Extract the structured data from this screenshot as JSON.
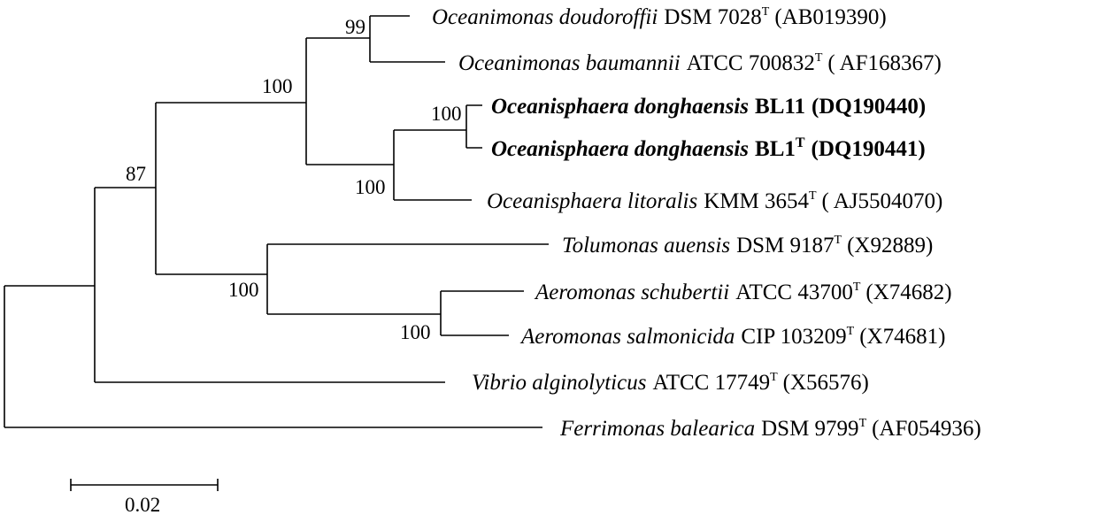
{
  "taxa": [
    {
      "genus": "Oceanimonas doudoroffii",
      "strain": "DSM 7028",
      "type": "T",
      "accession": "(AB019390)",
      "bold": false
    },
    {
      "genus": "Oceanimonas baumannii",
      "strain": "ATCC 700832",
      "type": "T",
      "accession": "( AF168367)",
      "bold": false
    },
    {
      "genus": "Oceanisphaera donghaensis",
      "strain": "BL11",
      "type": "",
      "accession": "(DQ190440)",
      "bold": true
    },
    {
      "genus": "Oceanisphaera donghaensis",
      "strain": "BL1",
      "type": "T",
      "accession": "(DQ190441)",
      "bold": true
    },
    {
      "genus": "Oceanisphaera litoralis",
      "strain": "KMM 3654",
      "type": "T",
      "accession": "( AJ5504070)",
      "bold": false
    },
    {
      "genus": "Tolumonas auensis",
      "strain": "DSM 9187",
      "type": "T",
      "accession": "(X92889)",
      "bold": false
    },
    {
      "genus": "Aeromonas schubertii",
      "strain": "ATCC 43700",
      "type": "T",
      "accession": "(X74682)",
      "bold": false
    },
    {
      "genus": "Aeromonas salmonicida",
      "strain": "CIP 103209",
      "type": "T",
      "accession": "(X74681)",
      "bold": false
    },
    {
      "genus": "Vibrio alginolyticus",
      "strain": "ATCC 17749",
      "type": "T",
      "accession": "(X56576)",
      "bold": false
    },
    {
      "genus": "Ferrimonas balearica",
      "strain": "DSM 9799",
      "type": "T",
      "accession": "(AF054936)",
      "bold": false
    }
  ],
  "bootstrap": [
    "99",
    "100",
    "100",
    "100",
    "87",
    "100",
    "100"
  ],
  "scale_bar": {
    "label": "0.02"
  }
}
